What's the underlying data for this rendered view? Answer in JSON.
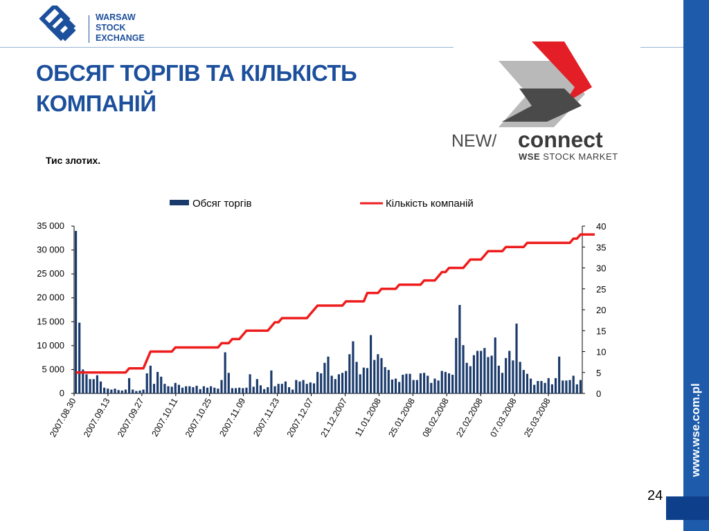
{
  "header": {
    "logo_text_lines": [
      "WARSAW",
      "STOCK",
      "EXCHANGE"
    ],
    "title_lines": [
      "ОБСЯГ ТОРГІВ ТА КІЛЬКІСТЬ",
      "КОМПАНІЙ"
    ],
    "newconnect_logo": {
      "new_text": "NEW/",
      "connect_text": "connect",
      "tagline_bold": "WSE",
      "tagline": " STOCK MARKET"
    }
  },
  "sidebar": {
    "url": "www.wse.com.pl"
  },
  "unit_label": "Тис злотих.",
  "page_number": "24",
  "colors": {
    "brand_blue": "#1c4f9c",
    "bar": "#1a3a6b",
    "line": "#ee1c1c",
    "sidebar": "#1f5bab"
  },
  "chart_data": {
    "type": "bar",
    "secondary_type": "line",
    "legend": {
      "position": "top",
      "bar_label": "Обсяг торгів",
      "line_label": "Кількість компаній"
    },
    "y_left": {
      "ylim": [
        0,
        35000
      ],
      "ticks": [
        "0",
        "5 000",
        "10 000",
        "15 000",
        "20 000",
        "25 000",
        "30 000",
        "35 000"
      ]
    },
    "y_right": {
      "ylim": [
        0,
        40
      ],
      "ticks": [
        "0",
        "5",
        "10",
        "15",
        "20",
        "25",
        "30",
        "35",
        "40"
      ]
    },
    "x_tick_labels": [
      "2007.08.30",
      "2007.09.13",
      "2007.09.27",
      "2007.10.11",
      "2007.10.25",
      "2007.11.09",
      "2007.11.23",
      "2007.12.07",
      "21.12.2007",
      "11.01.2008",
      "25.01.2008",
      "08.02.2008",
      "22.02.2008",
      "07.03.2008",
      "25.03.2008"
    ],
    "bar_values": [
      34000,
      14800,
      5000,
      4000,
      3000,
      3000,
      3800,
      2500,
      1200,
      1000,
      800,
      1000,
      700,
      600,
      800,
      3200,
      800,
      500,
      600,
      800,
      4200,
      5800,
      2000,
      4500,
      3500,
      2000,
      1500,
      1400,
      2200,
      1800,
      1200,
      1500,
      1500,
      1300,
      1600,
      900,
      1500,
      1200,
      1500,
      1200,
      1000,
      2800,
      8600,
      4300,
      1100,
      1100,
      1200,
      1100,
      1200,
      4000,
      1400,
      3000,
      1700,
      900,
      1300,
      4800,
      1500,
      2000,
      2000,
      2500,
      1300,
      800,
      2800,
      2500,
      2800,
      2000,
      2300,
      2100,
      4500,
      4200,
      6400,
      7700,
      3700,
      3000,
      4000,
      4300,
      4700,
      8200,
      10900,
      6600,
      4000,
      5400,
      5300,
      12200,
      7000,
      8200,
      7400,
      5500,
      4900,
      2900,
      3100,
      2400,
      3900,
      4100,
      4100,
      2800,
      2800,
      4200,
      4300,
      3700,
      2200,
      3100,
      2700,
      4700,
      4500,
      4200,
      3900,
      11600,
      18500,
      10100,
      6400,
      5700,
      8000,
      8900,
      8900,
      9500,
      7600,
      7900,
      11700,
      5800,
      4300,
      7400,
      8900,
      6900,
      14600,
      6600,
      4900,
      4100,
      3100,
      1800,
      2600,
      2600,
      2200,
      3200,
      1900,
      3200,
      7700,
      2700,
      2700,
      2800,
      3700,
      1900,
      2800
    ],
    "line_values": [
      5,
      5,
      5,
      5,
      5,
      5,
      5,
      5,
      5,
      5,
      5,
      5,
      5,
      5,
      5,
      6,
      6,
      6,
      6,
      6,
      8,
      10,
      10,
      10,
      10,
      10,
      10,
      10,
      11,
      11,
      11,
      11,
      11,
      11,
      11,
      11,
      11,
      11,
      11,
      11,
      11,
      12,
      12,
      12,
      13,
      13,
      13,
      14,
      15,
      15,
      15,
      15,
      15,
      15,
      15,
      16,
      17,
      17,
      18,
      18,
      18,
      18,
      18,
      18,
      18,
      18,
      19,
      20,
      21,
      21,
      21,
      21,
      21,
      21,
      21,
      21,
      22,
      22,
      22,
      22,
      22,
      22,
      24,
      24,
      24,
      24,
      25,
      25,
      25,
      25,
      25,
      26,
      26,
      26,
      26,
      26,
      26,
      26,
      27,
      27,
      27,
      27,
      28,
      29,
      29,
      30,
      30,
      30,
      30,
      30,
      31,
      32,
      32,
      32,
      32,
      33,
      34,
      34,
      34,
      34,
      34,
      35,
      35,
      35,
      35,
      35,
      35,
      36,
      36,
      36,
      36,
      36,
      36,
      36,
      36,
      36,
      36,
      36,
      36,
      36,
      37,
      37,
      38,
      38,
      38,
      38,
      38
    ]
  }
}
